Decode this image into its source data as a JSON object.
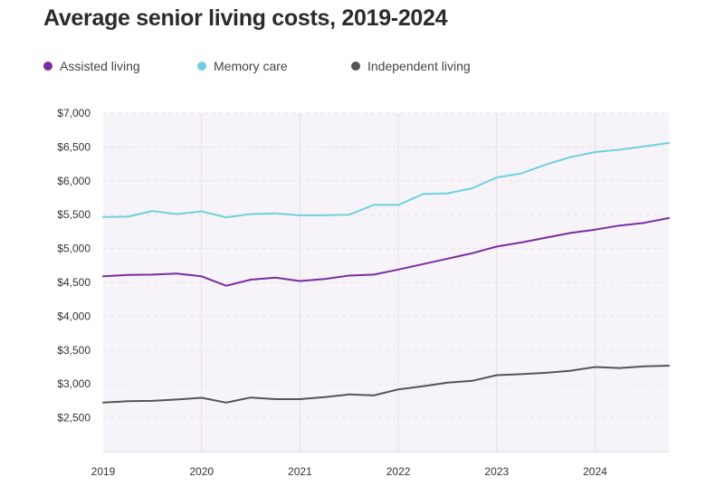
{
  "chart_data": {
    "type": "line",
    "title": "Average senior living costs, 2019-2024",
    "xlabel": "",
    "ylabel": "",
    "xlim": [
      2019,
      2024.75
    ],
    "ylim": [
      2000,
      7000
    ],
    "y_ticks": [
      2500,
      3000,
      3500,
      4000,
      4500,
      5000,
      5500,
      6000,
      6500,
      7000
    ],
    "y_tick_labels": [
      "$2,500",
      "$3,000",
      "$3,500",
      "$4,000",
      "$4,500",
      "$5,000",
      "$5,500",
      "$6,000",
      "$6,500",
      "$7,000"
    ],
    "x_ticks": [
      2019,
      2020,
      2021,
      2022,
      2023,
      2024
    ],
    "x_tick_labels": [
      "2019",
      "2020",
      "2021",
      "2022",
      "2023",
      "2024"
    ],
    "grid": true,
    "legend_position": "top-left",
    "x": [
      2019,
      2019.25,
      2019.5,
      2019.75,
      2020,
      2020.25,
      2020.5,
      2020.75,
      2021,
      2021.25,
      2021.5,
      2021.75,
      2022,
      2022.25,
      2022.5,
      2022.75,
      2023,
      2023.25,
      2023.5,
      2023.75,
      2024,
      2024.25,
      2024.5,
      2024.75
    ],
    "series": [
      {
        "name": "Assisted living",
        "color": "#7b2d9e",
        "values": [
          4590,
          4610,
          4615,
          4630,
          4590,
          4450,
          4540,
          4570,
          4520,
          4550,
          4600,
          4615,
          4690,
          4770,
          4850,
          4930,
          5030,
          5090,
          5160,
          5230,
          5280,
          5340,
          5380,
          5450
        ]
      },
      {
        "name": "Memory care",
        "color": "#6fd0dd",
        "values": [
          5465,
          5470,
          5555,
          5510,
          5550,
          5460,
          5510,
          5520,
          5490,
          5490,
          5500,
          5645,
          5645,
          5805,
          5815,
          5890,
          6050,
          6110,
          6240,
          6350,
          6425,
          6460,
          6510,
          6560
        ]
      },
      {
        "name": "Independent living",
        "color": "#555555",
        "values": [
          2725,
          2745,
          2750,
          2770,
          2795,
          2725,
          2800,
          2775,
          2775,
          2805,
          2845,
          2830,
          2920,
          2965,
          3020,
          3045,
          3130,
          3145,
          3165,
          3195,
          3250,
          3235,
          3260,
          3270
        ]
      }
    ]
  }
}
